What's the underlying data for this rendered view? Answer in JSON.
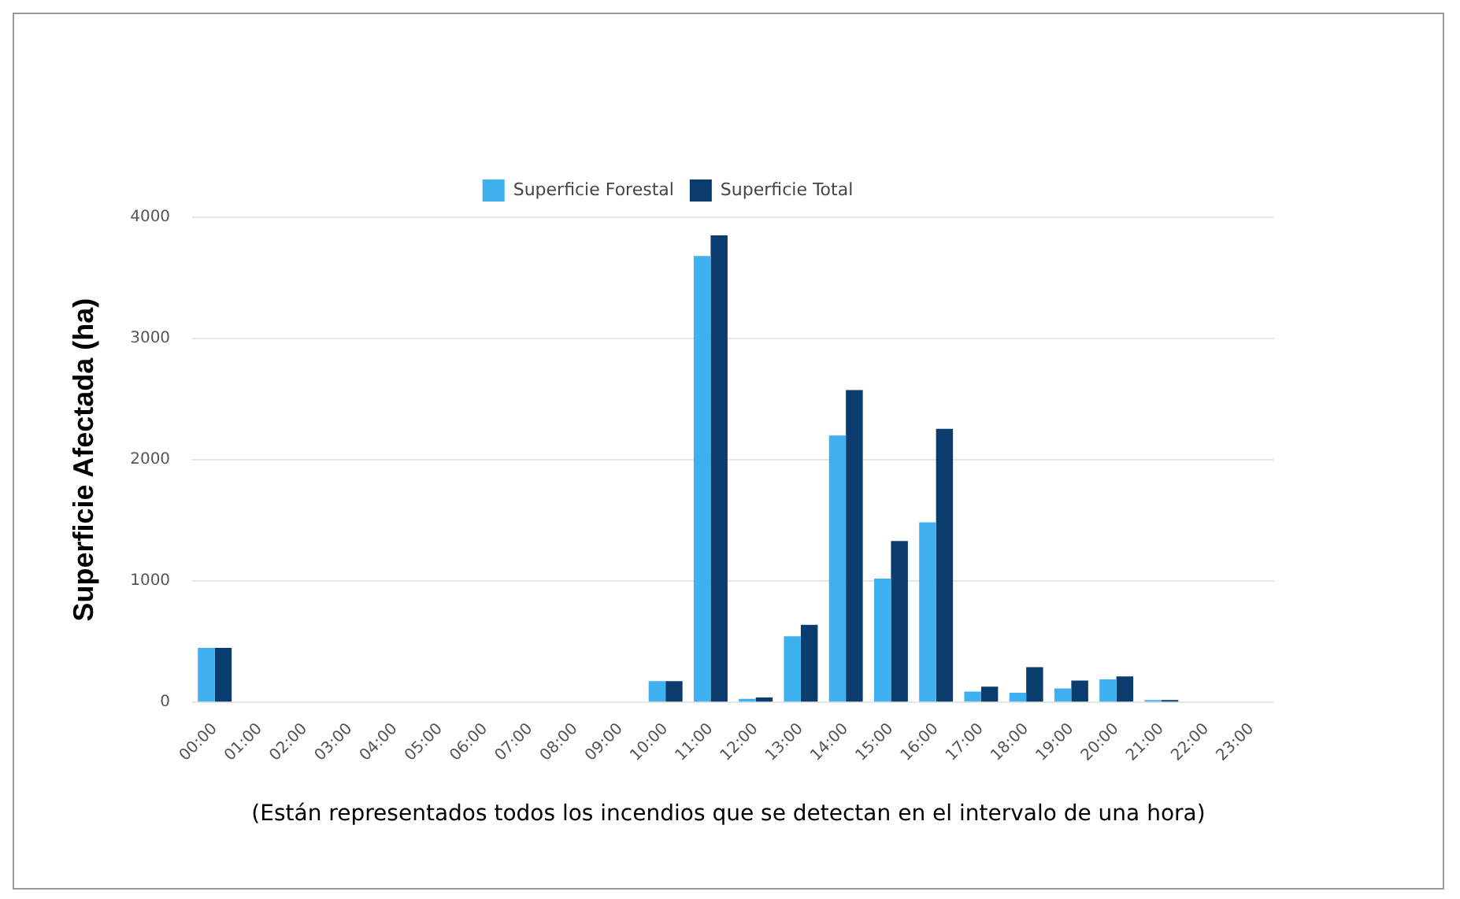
{
  "chart_data": {
    "type": "bar",
    "ylabel": "Superficie Afectada (ha)",
    "categories": [
      "00:00",
      "01:00",
      "02:00",
      "03:00",
      "04:00",
      "05:00",
      "06:00",
      "07:00",
      "08:00",
      "09:00",
      "10:00",
      "11:00",
      "12:00",
      "13:00",
      "14:00",
      "15:00",
      "16:00",
      "17:00",
      "18:00",
      "19:00",
      "20:00",
      "21:00",
      "22:00",
      "23:00"
    ],
    "series": [
      {
        "name": "Superficie Forestal",
        "color": "#3fb0f0",
        "values": [
          450,
          0,
          0,
          0,
          0,
          0,
          0,
          0,
          0,
          0,
          175,
          3680,
          30,
          545,
          2200,
          1020,
          1485,
          90,
          80,
          115,
          190,
          20,
          0,
          0
        ]
      },
      {
        "name": "Superficie Total",
        "color": "#0a3d6e",
        "values": [
          450,
          0,
          0,
          0,
          0,
          0,
          0,
          0,
          0,
          0,
          175,
          3850,
          40,
          640,
          2575,
          1330,
          2255,
          130,
          290,
          180,
          215,
          20,
          0,
          0
        ]
      }
    ],
    "ylim": [
      0,
      4000
    ],
    "yticks": [
      0,
      1000,
      2000,
      3000,
      4000
    ],
    "grid": "y",
    "legend": "top",
    "annotations": [
      "(Están representados todos los incendios que se detectan en el intervalo de una hora)"
    ]
  }
}
